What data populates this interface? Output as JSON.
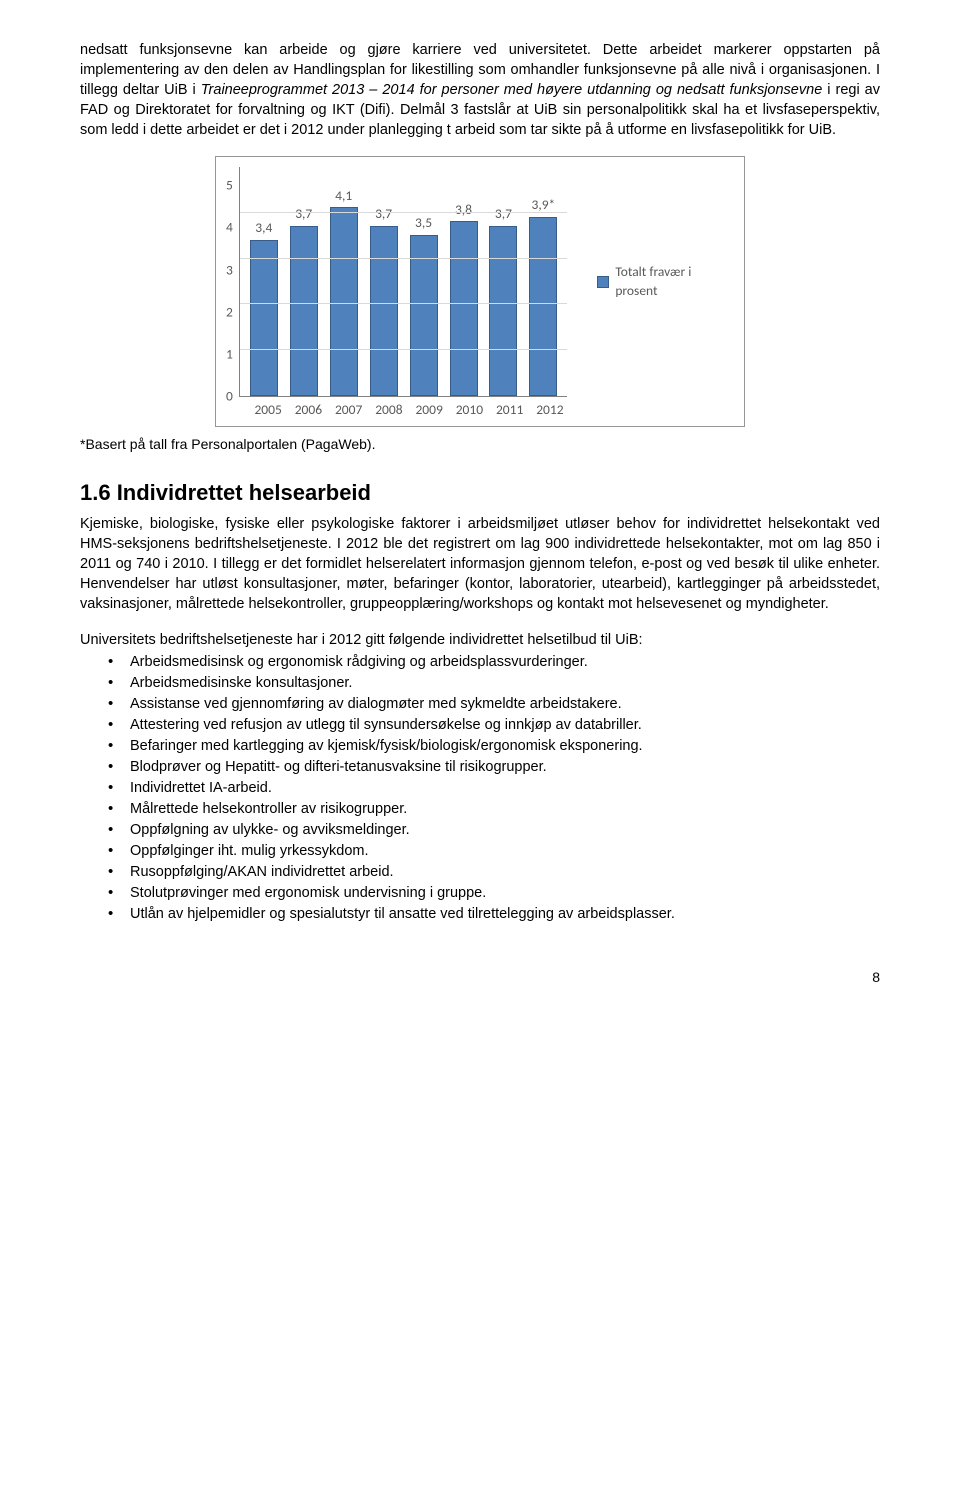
{
  "para1_pre": "nedsatt funksjonsevne kan arbeide og gjøre karriere ved universitetet. Dette arbeidet markerer oppstarten på implementering av den delen av Handlingsplan for likestilling som omhandler funksjonsevne på alle nivå i organisasjonen. I tillegg deltar UiB i ",
  "para1_ital": "Traineeprogrammet 2013 – 2014 for personer med høyere utdanning og nedsatt funksjonsevne",
  "para1_post": " i regi av FAD og Direktoratet for forvaltning og IKT (Difi). Delmål 3 fastslår at UiB sin personalpolitikk skal ha et livsfaseperspektiv, som ledd i dette arbeidet er det i 2012 under planlegging t arbeid som tar sikte på å utforme en livsfasepolitikk for UiB.",
  "chart": {
    "categories": [
      "2005",
      "2006",
      "2007",
      "2008",
      "2009",
      "2010",
      "2011",
      "2012"
    ],
    "values": [
      3.4,
      3.7,
      4.1,
      3.7,
      3.5,
      3.8,
      3.7,
      3.9
    ],
    "value_labels": [
      "3,4",
      "3,7",
      "4,1",
      "3,7",
      "3,5",
      "3,8",
      "3,7",
      "3,9*"
    ],
    "ymax": 5,
    "ytick_step": 1,
    "yticks": [
      "5",
      "4",
      "3",
      "2",
      "1",
      "0"
    ],
    "bar_fill": "#4f81bd",
    "bar_border": "#385d8a",
    "grid_color": "#d9d9d9",
    "axis_color": "#808080",
    "outer_border": "#969696",
    "legend_label": "Totalt fravær i prosent",
    "tick_font_color": "#595959"
  },
  "caption": "*Basert på tall fra Personalportalen (PagaWeb).",
  "heading": "1.6 Individrettet helsearbeid",
  "para2": "Kjemiske, biologiske, fysiske eller psykologiske faktorer i arbeidsmiljøet utløser behov for individrettet helsekontakt ved HMS-seksjonens bedriftshelsetjeneste. I 2012 ble det registrert om lag 900 individrettede helsekontakter, mot om lag 850 i 2011 og 740 i 2010. I tillegg er det formidlet helserelatert informasjon gjennom telefon, e-post og ved besøk til ulike enheter. Henvendelser har utløst konsultasjoner, møter, befaringer (kontor, laboratorier, utearbeid), kartlegginger på arbeidsstedet, vaksinasjoner, målrettede helsekontroller, gruppeopplæring/workshops og kontakt mot helsevesenet og myndigheter.",
  "para3": "Universitets bedriftshelsetjeneste har i 2012 gitt følgende individrettet helsetilbud til UiB:",
  "bullets": [
    "Arbeidsmedisinsk og ergonomisk rådgiving og arbeidsplassvurderinger.",
    "Arbeidsmedisinske konsultasjoner.",
    "Assistanse ved gjennomføring av dialogmøter med sykmeldte arbeidstakere.",
    "Attestering ved refusjon av utlegg til synsundersøkelse og innkjøp av databriller.",
    "Befaringer med kartlegging av kjemisk/fysisk/biologisk/ergonomisk eksponering.",
    "Blodprøver og Hepatitt- og difteri-tetanusvaksine til risikogrupper.",
    "Individrettet IA-arbeid.",
    "Målrettede helsekontroller av risikogrupper.",
    "Oppfølgning av ulykke- og avviksmeldinger.",
    "Oppfølginger iht. mulig yrkessykdom.",
    "Rusoppfølging/AKAN individrettet arbeid.",
    "Stolutprøvinger med ergonomisk undervisning i gruppe.",
    "Utlån av hjelpemidler og spesialutstyr til ansatte ved tilrettelegging av arbeidsplasser."
  ],
  "page_number": "8"
}
